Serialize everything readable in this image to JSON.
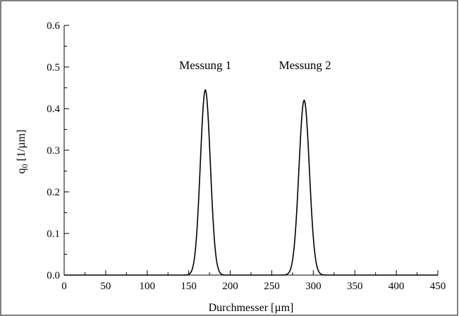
{
  "chart_data": {
    "type": "line",
    "xlabel": "Durchmesser [µm]",
    "ylabel_main": "q",
    "ylabel_sub": "0",
    "ylabel_unit": " [1/µm]",
    "xlim": [
      0,
      450
    ],
    "ylim": [
      0.0,
      0.6
    ],
    "x_ticks": [
      0,
      50,
      100,
      150,
      200,
      250,
      300,
      350,
      400,
      450
    ],
    "x_tick_labels": [
      "0",
      "50",
      "100",
      "150",
      "200",
      "250",
      "300",
      "350",
      "400",
      "450"
    ],
    "y_ticks": [
      0.0,
      0.1,
      0.2,
      0.3,
      0.4,
      0.5,
      0.6
    ],
    "y_tick_labels": [
      "0.0",
      "0.1",
      "0.2",
      "0.3",
      "0.4",
      "0.5",
      "0.6"
    ],
    "grid": false,
    "series": [
      {
        "peak_x": 170,
        "peak_y": 0.445,
        "sigma": 6.0
      },
      {
        "peak_x": 289,
        "peak_y": 0.42,
        "sigma": 6.3
      }
    ],
    "annotations": [
      {
        "text": "Messung 1",
        "x": 170,
        "y": 0.495
      },
      {
        "text": "Messung 2",
        "x": 290,
        "y": 0.495
      }
    ]
  }
}
